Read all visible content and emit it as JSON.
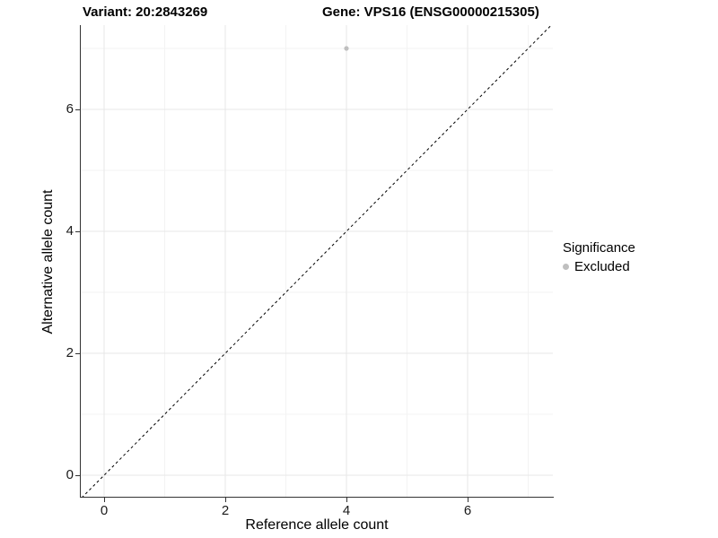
{
  "header": {
    "variant_title": "Variant: 20:2843269",
    "gene_title": "Gene: VPS16 (ENSG00000215305)"
  },
  "legend": {
    "title": "Significance",
    "items": [
      {
        "label": "Excluded",
        "color": "#bfbfbf"
      }
    ]
  },
  "chart_data": {
    "type": "scatter",
    "title": "Variant: 20:2843269 | Gene: VPS16 (ENSG00000215305)",
    "xlabel": "Reference allele count",
    "ylabel": "Alternative allele count",
    "xlim": [
      -0.37,
      7.4
    ],
    "ylim": [
      -0.37,
      7.4
    ],
    "x_ticks": [
      0,
      2,
      4,
      6
    ],
    "y_ticks": [
      0,
      2,
      4,
      6
    ],
    "minor_ticks": [
      1,
      3,
      5,
      7
    ],
    "grid": "on",
    "legend_position": "right",
    "series": [
      {
        "name": "Excluded",
        "color": "#bfbfbf",
        "points": [
          [
            4,
            7
          ]
        ]
      }
    ],
    "reference_line": {
      "type": "identity y=x",
      "style": "dashed",
      "color": "#000000"
    }
  },
  "colors": {
    "background": "#ffffff",
    "grid_major": "#e7e7e7",
    "grid_minor": "#f3f3f3",
    "axis_line": "#333333",
    "point": "#bfbfbf",
    "text": "#000000"
  }
}
